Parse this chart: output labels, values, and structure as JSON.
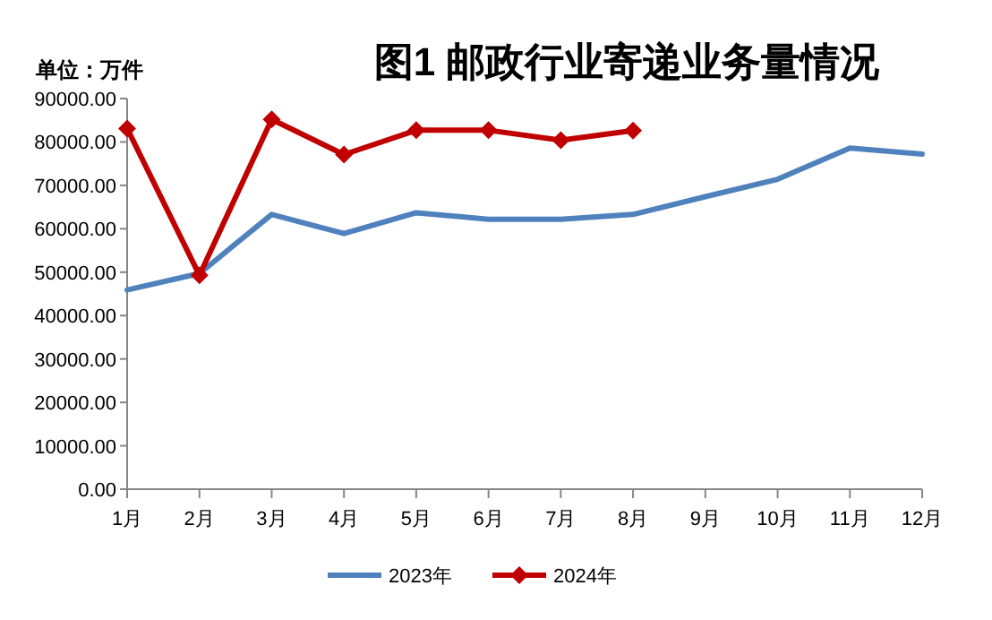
{
  "chart_data": {
    "type": "line",
    "title": "图1  邮政行业寄递业务量情况",
    "annotations": [
      "单位：万件"
    ],
    "categories": [
      "1月",
      "2月",
      "3月",
      "4月",
      "5月",
      "6月",
      "7月",
      "8月",
      "9月",
      "10月",
      "11月",
      "12月"
    ],
    "series": [
      {
        "name": "2023年",
        "color": "#4f81bd",
        "marker": "none",
        "values": [
          45900,
          49700,
          63300,
          58900,
          63700,
          62200,
          62200,
          63300,
          67400,
          71400,
          78600,
          77200
        ]
      },
      {
        "name": "2024年",
        "color": "#c00000",
        "marker": "diamond",
        "values": [
          83100,
          49300,
          85200,
          77100,
          82700,
          82700,
          80400,
          82600,
          null,
          null,
          null,
          null
        ]
      }
    ],
    "ylim": [
      0,
      90000
    ],
    "yticks": [
      {
        "value": 0,
        "label": "0.00"
      },
      {
        "value": 10000,
        "label": "10000.00"
      },
      {
        "value": 20000,
        "label": "20000.00"
      },
      {
        "value": 30000,
        "label": "30000.00"
      },
      {
        "value": 40000,
        "label": "40000.00"
      },
      {
        "value": 50000,
        "label": "50000.00"
      },
      {
        "value": 60000,
        "label": "60000.00"
      },
      {
        "value": 70000,
        "label": "70000.00"
      },
      {
        "value": 80000,
        "label": "80000.00"
      },
      {
        "value": 90000,
        "label": "90000.00"
      }
    ],
    "grid": false,
    "legend": "bottom",
    "line_style": "solid"
  }
}
